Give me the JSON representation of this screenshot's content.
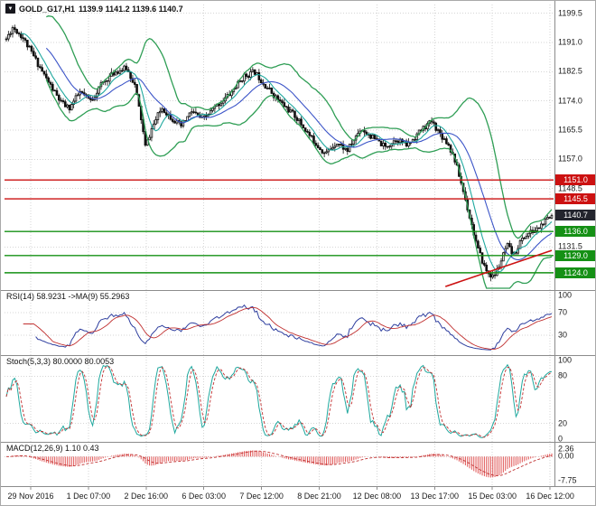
{
  "header": {
    "symbol": "GOLD_G17,H1",
    "quote": "1139.9 1141.2 1139.6 1140.7",
    "icon_name": "symbol-dropdown-icon",
    "icon_glyph": "▼"
  },
  "colors": {
    "candle": "#111111",
    "bands": "#2f9e55",
    "ma_fast": "#1fa89e",
    "ma_slow": "#3c55c8",
    "rsi_line": "#2f3f9f",
    "rsi_ma": "#c03030",
    "stoch_k": "#1fa89e",
    "stoch_d": "#c03030",
    "macd": "#e05555",
    "macd_signal": "#c03030",
    "level_red": "#cc1111",
    "level_green": "#159015",
    "price_badge": "#23252e",
    "grid": "#d6d6d6",
    "divider": "#8c8c8c",
    "axis_text": "#1a1a1a"
  },
  "chart_data": {
    "type": "candlestick",
    "symbol": "GOLD_G17",
    "timeframe": "H1",
    "title": "GOLD_G17,H1 1139.9 1141.2 1139.6 1140.7",
    "current_bar": {
      "open": 1139.9,
      "high": 1141.2,
      "low": 1139.6,
      "close": 1140.7
    },
    "x_labels": [
      "29 Nov 2016",
      "1 Dec 07:00",
      "2 Dec 16:00",
      "6 Dec 03:00",
      "7 Dec 12:00",
      "8 Dec 21:00",
      "12 Dec 08:00",
      "13 Dec 17:00",
      "15 Dec 03:00",
      "16 Dec 12:00"
    ],
    "main": {
      "y_ticks": [
        "1199.5",
        "1191.0",
        "1182.5",
        "1174.0",
        "1165.5",
        "1157.0",
        "1148.5",
        "1131.5"
      ],
      "y_range": [
        1119.5,
        1201.5
      ],
      "overlays": [
        "Bollinger Bands (green)",
        "fast MA (teal)",
        "slow MA (blue)"
      ],
      "levels": [
        {
          "value": 1151.0,
          "label": "1151.0",
          "color": "#cc1111",
          "kind": "resistance"
        },
        {
          "value": 1145.5,
          "label": "1145.5",
          "color": "#cc1111",
          "kind": "resistance"
        },
        {
          "value": 1140.7,
          "label": "1140.7",
          "color": "#23252e",
          "kind": "current-price"
        },
        {
          "value": 1136.0,
          "label": "1136.0",
          "color": "#159015",
          "kind": "support"
        },
        {
          "value": 1129.0,
          "label": "1129.0",
          "color": "#159015",
          "kind": "support"
        },
        {
          "value": 1124.0,
          "label": "1124.0",
          "color": "#159015",
          "kind": "support"
        }
      ],
      "trendline": {
        "from_t": 0.805,
        "from_price": 1120.0,
        "to_t": 1.0,
        "to_price": 1130.5,
        "color": "#cc1111"
      },
      "price_path": [
        [
          0.0,
          1192.0
        ],
        [
          0.012,
          1195.5
        ],
        [
          0.03,
          1192.5
        ],
        [
          0.05,
          1187.0
        ],
        [
          0.075,
          1180.0
        ],
        [
          0.1,
          1173.5
        ],
        [
          0.115,
          1171.8
        ],
        [
          0.135,
          1176.5
        ],
        [
          0.155,
          1174.0
        ],
        [
          0.175,
          1179.0
        ],
        [
          0.2,
          1182.5
        ],
        [
          0.22,
          1183.5
        ],
        [
          0.235,
          1179.0
        ],
        [
          0.248,
          1168.0
        ],
        [
          0.255,
          1160.5
        ],
        [
          0.268,
          1166.5
        ],
        [
          0.285,
          1172.0
        ],
        [
          0.3,
          1169.5
        ],
        [
          0.32,
          1166.5
        ],
        [
          0.34,
          1171.0
        ],
        [
          0.36,
          1168.5
        ],
        [
          0.385,
          1172.5
        ],
        [
          0.41,
          1176.0
        ],
        [
          0.435,
          1181.0
        ],
        [
          0.455,
          1182.5
        ],
        [
          0.475,
          1178.5
        ],
        [
          0.5,
          1174.0
        ],
        [
          0.53,
          1169.5
        ],
        [
          0.56,
          1163.0
        ],
        [
          0.585,
          1158.5
        ],
        [
          0.605,
          1162.0
        ],
        [
          0.625,
          1159.5
        ],
        [
          0.65,
          1166.0
        ],
        [
          0.67,
          1163.5
        ],
        [
          0.695,
          1160.5
        ],
        [
          0.715,
          1163.0
        ],
        [
          0.735,
          1161.0
        ],
        [
          0.76,
          1165.5
        ],
        [
          0.78,
          1168.0
        ],
        [
          0.795,
          1164.5
        ],
        [
          0.81,
          1161.5
        ],
        [
          0.822,
          1157.0
        ],
        [
          0.835,
          1149.5
        ],
        [
          0.85,
          1140.0
        ],
        [
          0.865,
          1130.5
        ],
        [
          0.88,
          1124.5
        ],
        [
          0.893,
          1122.6
        ],
        [
          0.905,
          1126.5
        ],
        [
          0.918,
          1132.0
        ],
        [
          0.93,
          1129.0
        ],
        [
          0.944,
          1133.5
        ],
        [
          0.958,
          1135.5
        ],
        [
          0.972,
          1136.5
        ],
        [
          0.985,
          1138.5
        ],
        [
          1.0,
          1140.5
        ]
      ]
    },
    "rsi": {
      "label": "RSI(14) 58.9231 ->MA(9) 55.2963",
      "period": 14,
      "ma_period": 9,
      "value": 58.9231,
      "ma_value": 55.2963,
      "ticks": [
        "100",
        "70",
        "30"
      ],
      "levels": [
        70,
        30
      ]
    },
    "stoch": {
      "label": "Stoch(5,3,3) 80.0000 80.0053",
      "k": 5,
      "d": 3,
      "slowing": 3,
      "value": 80.0,
      "signal": 80.0053,
      "ticks": [
        "100",
        "80",
        "20",
        "0"
      ],
      "levels": [
        80,
        20
      ]
    },
    "macd": {
      "label": "MACD(12,26,9) 1.10 0.43",
      "fast": 12,
      "slow": 26,
      "signal_period": 9,
      "value": 1.1,
      "signal": 0.43,
      "ticks": [
        "2.36",
        "0.00",
        "-7.75"
      ]
    },
    "render": {
      "candles": 260,
      "seed": 11,
      "noise": 0.85
    }
  }
}
